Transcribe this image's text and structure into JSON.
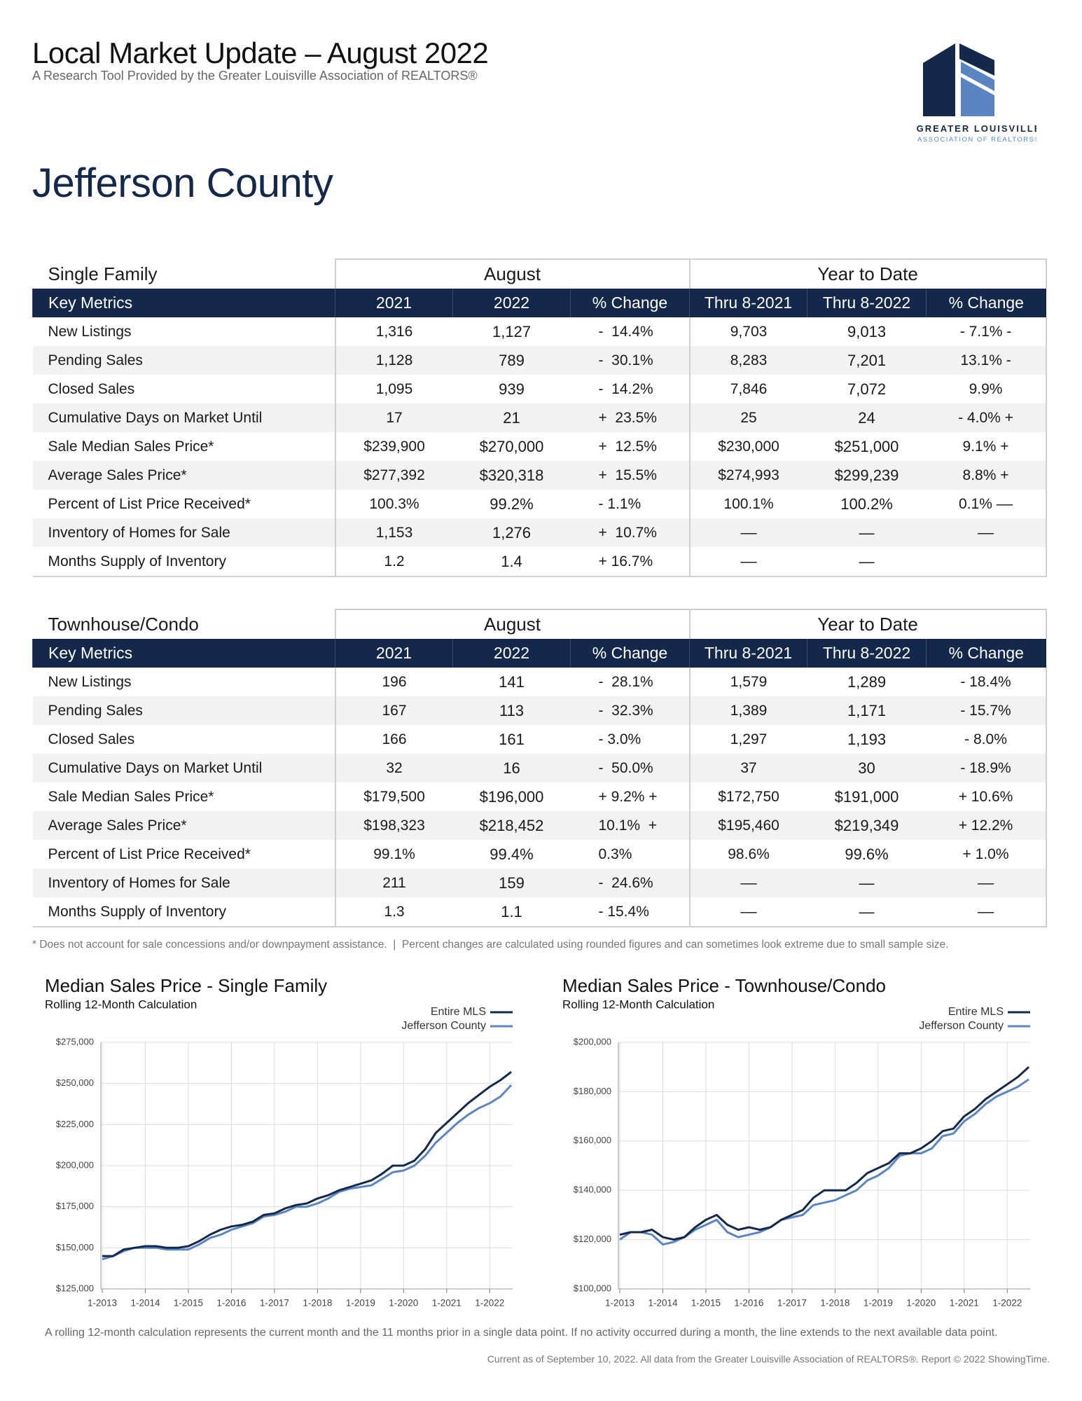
{
  "header": {
    "title": "Local Market Update – August 2022",
    "subtitle": "A Research Tool Provided by the Greater Louisville Association of REALTORS®",
    "logo_line1": "GREATER LOUISVILLE",
    "logo_line2": "ASSOCIATION OF REALTORS®"
  },
  "county": "Jefferson County",
  "tables": [
    {
      "section": "Single Family",
      "groups": [
        "August",
        "Year to Date"
      ],
      "columns": [
        "Key Metrics",
        "2021",
        "2022",
        "% Change",
        "Thru 8-2021",
        "Thru 8-2022",
        "% Change"
      ],
      "rows": [
        [
          "New Listings",
          "1,316",
          "1,127",
          "-  14.4%",
          "9,703",
          "9,013",
          "- 7.1% -"
        ],
        [
          "Pending Sales",
          "1,128",
          "789",
          "-  30.1%",
          "8,283",
          "7,201",
          "13.1%  -"
        ],
        [
          "Closed Sales",
          "1,095",
          "939",
          "-  14.2%",
          "7,846",
          "7,072",
          "9.9%"
        ],
        [
          "Cumulative Days on Market Until",
          "17",
          "21",
          "+  23.5%",
          "25",
          "24",
          "- 4.0% +"
        ],
        [
          "Sale Median Sales Price*",
          "$239,900",
          "$270,000",
          "+  12.5%",
          "$230,000",
          "$251,000",
          "9.1% +"
        ],
        [
          "Average Sales Price*",
          "$277,392",
          "$320,318",
          "+  15.5%",
          "$274,993",
          "$299,239",
          "8.8% +"
        ],
        [
          "Percent of List Price Received*",
          "100.3%",
          "99.2%",
          "- 1.1%",
          "100.1%",
          "100.2%",
          "0.1% ––"
        ],
        [
          "Inventory of Homes for Sale",
          "1,153",
          "1,276",
          "+  10.7%",
          "––",
          "—",
          "––"
        ],
        [
          "Months Supply of Inventory",
          "1.2",
          "1.4",
          "+ 16.7%",
          "––",
          "—"
        ]
      ]
    },
    {
      "section": "Townhouse/Condo",
      "groups": [
        "August",
        "Year to Date"
      ],
      "columns": [
        "Key Metrics",
        "2021",
        "2022",
        "% Change",
        "Thru 8-2021",
        "Thru 8-2022",
        "% Change"
      ],
      "rows": [
        [
          "New Listings",
          "196",
          "141",
          "-  28.1%",
          "1,579",
          "1,289",
          "-  18.4%"
        ],
        [
          "Pending Sales",
          "167",
          "113",
          "-  32.3%",
          "1,389",
          "1,171",
          "-  15.7%"
        ],
        [
          "Closed Sales",
          "166",
          "161",
          "- 3.0%",
          "1,297",
          "1,193",
          "- 8.0%"
        ],
        [
          "Cumulative Days on Market Until",
          "32",
          "16",
          "-  50.0%",
          "37",
          "30",
          "- 18.9%"
        ],
        [
          "Sale Median Sales Price*",
          "$179,500",
          "$196,000",
          "+ 9.2% +",
          "$172,750",
          "$191,000",
          "+ 10.6%"
        ],
        [
          "Average Sales Price*",
          "$198,323",
          "$218,452",
          "10.1%  +",
          "$195,460",
          "$219,349",
          "+ 12.2%"
        ],
        [
          "Percent of List Price Received*",
          "99.1%",
          "99.4%",
          "0.3%",
          "98.6%",
          "99.6%",
          "+ 1.0%"
        ],
        [
          "Inventory of Homes for Sale",
          "211",
          "159",
          "-  24.6%",
          "––",
          "—",
          "––"
        ],
        [
          "Months Supply of Inventory",
          "1.3",
          "1.1",
          "- 15.4%",
          "––",
          "—",
          "––"
        ]
      ]
    }
  ],
  "footnote": "* Does not account for sale concessions and/or downpayment assistance.  |  Percent changes are calculated using rounded figures and can sometimes look extreme due to small sample size.",
  "chart_data": [
    {
      "type": "line",
      "title": "Median Sales Price - Single Family",
      "subtitle": "Rolling 12-Month Calculation",
      "categories": [
        "1-2013",
        null,
        null,
        null,
        "1-2014",
        null,
        null,
        null,
        "1-2015",
        null,
        null,
        null,
        "1-2016",
        null,
        null,
        null,
        "1-2017",
        null,
        null,
        null,
        "1-2018",
        null,
        null,
        null,
        "1-2019",
        null,
        null,
        null,
        "1-2020",
        null,
        null,
        null,
        "1-2021",
        null,
        null,
        null,
        "1-2022",
        null,
        null
      ],
      "series": [
        {
          "name": "Entire MLS",
          "color": "#13284b",
          "values": [
            145000,
            145000,
            149000,
            150000,
            151000,
            151000,
            150000,
            150000,
            151000,
            154000,
            158000,
            161000,
            163000,
            164000,
            166000,
            170000,
            171000,
            174000,
            176000,
            177000,
            180000,
            182000,
            185000,
            187000,
            189000,
            191000,
            195000,
            200000,
            200000,
            203000,
            210000,
            220000,
            226000,
            232000,
            238000,
            243000,
            248000,
            252000,
            257000
          ]
        },
        {
          "name": "Jefferson County",
          "color": "#5b85c2",
          "values": [
            143000,
            145000,
            148000,
            150000,
            150000,
            150000,
            149000,
            149000,
            149000,
            152000,
            156000,
            158000,
            161000,
            163000,
            165000,
            169000,
            170000,
            172000,
            175000,
            175000,
            177000,
            180000,
            184000,
            186000,
            187000,
            188000,
            192000,
            196000,
            197000,
            200000,
            206000,
            214000,
            220000,
            226000,
            231000,
            235000,
            238000,
            242000,
            249000
          ]
        }
      ],
      "ylim": [
        125000,
        275000
      ],
      "yticks": [
        {
          "value": 125000,
          "label": "$125,000"
        },
        {
          "value": 150000,
          "label": "$150,000"
        },
        {
          "value": 175000,
          "label": "$175,000"
        },
        {
          "value": 200000,
          "label": "$200,000"
        },
        {
          "value": 225000,
          "label": "$225,000"
        },
        {
          "value": 250000,
          "label": "$250,000"
        },
        {
          "value": 275000,
          "label": "$275,000"
        }
      ],
      "grid": true,
      "legend": "top-right"
    },
    {
      "type": "line",
      "title": "Median Sales Price - Townhouse/Condo",
      "subtitle": "Rolling 12-Month Calculation",
      "categories": [
        "1-2013",
        null,
        null,
        null,
        "1-2014",
        null,
        null,
        null,
        "1-2015",
        null,
        null,
        null,
        "1-2016",
        null,
        null,
        null,
        "1-2017",
        null,
        null,
        null,
        "1-2018",
        null,
        null,
        null,
        "1-2019",
        null,
        null,
        null,
        "1-2020",
        null,
        null,
        null,
        "1-2021",
        null,
        null,
        null,
        "1-2022",
        null,
        null
      ],
      "series": [
        {
          "name": "Entire MLS",
          "color": "#13284b",
          "values": [
            122000,
            123000,
            123000,
            124000,
            121000,
            120000,
            121000,
            125000,
            128000,
            130000,
            126000,
            124000,
            125000,
            124000,
            125000,
            128000,
            130000,
            132000,
            137000,
            140000,
            140000,
            140000,
            143000,
            147000,
            149000,
            151000,
            155000,
            155000,
            157000,
            160000,
            164000,
            165000,
            170000,
            173000,
            177000,
            180000,
            183000,
            186000,
            190000
          ]
        },
        {
          "name": "Jefferson County",
          "color": "#5b85c2",
          "values": [
            120000,
            123000,
            123000,
            122000,
            118000,
            119000,
            121000,
            124000,
            126000,
            128000,
            123000,
            121000,
            122000,
            123000,
            125000,
            128000,
            129000,
            130000,
            134000,
            135000,
            136000,
            138000,
            140000,
            144000,
            146000,
            149000,
            154000,
            155000,
            155000,
            157000,
            162000,
            163000,
            168000,
            171000,
            175000,
            178000,
            180000,
            182000,
            185000
          ]
        }
      ],
      "ylim": [
        100000,
        200000
      ],
      "yticks": [
        {
          "value": 100000,
          "label": "$100,000"
        },
        {
          "value": 120000,
          "label": "$120,000"
        },
        {
          "value": 140000,
          "label": "$140,000"
        },
        {
          "value": 160000,
          "label": "$160,000"
        },
        {
          "value": 180000,
          "label": "$180,000"
        },
        {
          "value": 200000,
          "label": "$200,000"
        }
      ],
      "grid": true,
      "legend": "top-right"
    }
  ],
  "notes": {
    "rolling": "A rolling 12-month calculation represents the current month and the 11 months prior in a single data point. If no activity occurred during a month, the line extends to the next available data point.",
    "copyright": "Current as of September 10, 2022. All data from the Greater Louisville Association of REALTORS®. Report © 2022 ShowingTime."
  }
}
